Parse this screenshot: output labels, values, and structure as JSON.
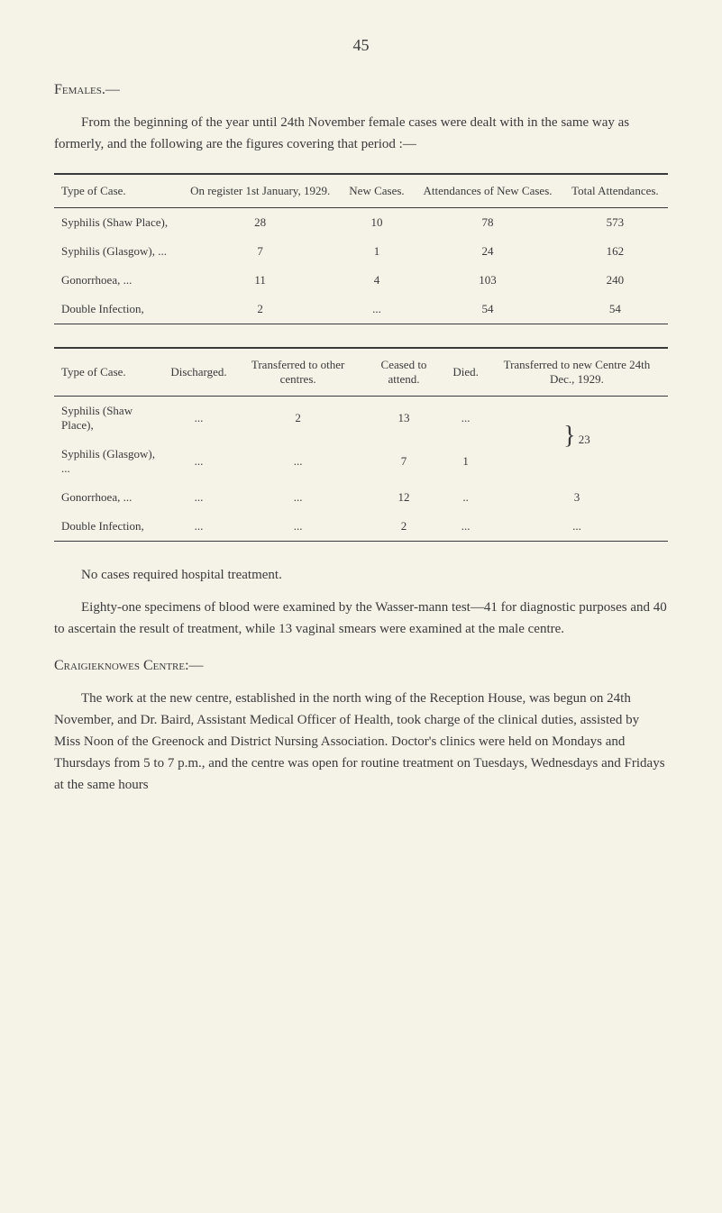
{
  "page_number": "45",
  "heading1": "Females.—",
  "intro_para": "From the beginning of the year until 24th November female cases were dealt with in the same way as formerly, and the following are the figures covering that period :—",
  "table1": {
    "headers": [
      "Type of Case.",
      "On register 1st January, 1929.",
      "New Cases.",
      "Attendances of New Cases.",
      "Total Attendances."
    ],
    "rows": [
      [
        "Syphilis (Shaw Place),",
        "28",
        "10",
        "78",
        "573"
      ],
      [
        "Syphilis (Glasgow), ...",
        "7",
        "1",
        "24",
        "162"
      ],
      [
        "Gonorrhoea, ...",
        "11",
        "4",
        "103",
        "240"
      ],
      [
        "Double Infection,",
        "2",
        "...",
        "54",
        "54"
      ]
    ]
  },
  "table2": {
    "headers": [
      "Type of Case.",
      "Discharged.",
      "Transferred to other centres.",
      "Ceased to attend.",
      "Died.",
      "Transferred to new Centre 24th Dec., 1929."
    ],
    "rows": [
      [
        "Syphilis (Shaw Place),",
        "...",
        "2",
        "13",
        "...",
        ""
      ],
      [
        "Syphilis (Glasgow), ...",
        "...",
        "...",
        "7",
        "1",
        "23"
      ],
      [
        "Gonorrhoea, ...",
        "...",
        "...",
        "12",
        "..",
        "3"
      ],
      [
        "Double Infection,",
        "...",
        "...",
        "2",
        "...",
        "..."
      ]
    ],
    "bracket_value": "23"
  },
  "closing_para1": "No cases required hospital treatment.",
  "closing_para2": "Eighty-one specimens of blood were examined by the Wasser-mann test—41 for diagnostic purposes and 40 to ascertain the result of treatment, while 13 vaginal smears were examined at the male centre.",
  "heading2": "Craigieknowes Centre:—",
  "closing_para3": "The work at the new centre, established in the north wing of the Reception House, was begun on 24th November, and Dr. Baird, Assistant Medical Officer of Health, took charge of the clinical duties, assisted by Miss Noon of the Greenock and District Nursing Association. Doctor's clinics were held on Mondays and Thursdays from 5 to 7 p.m., and the centre was open for routine treatment on Tuesdays, Wednesdays and Fridays at the same hours"
}
